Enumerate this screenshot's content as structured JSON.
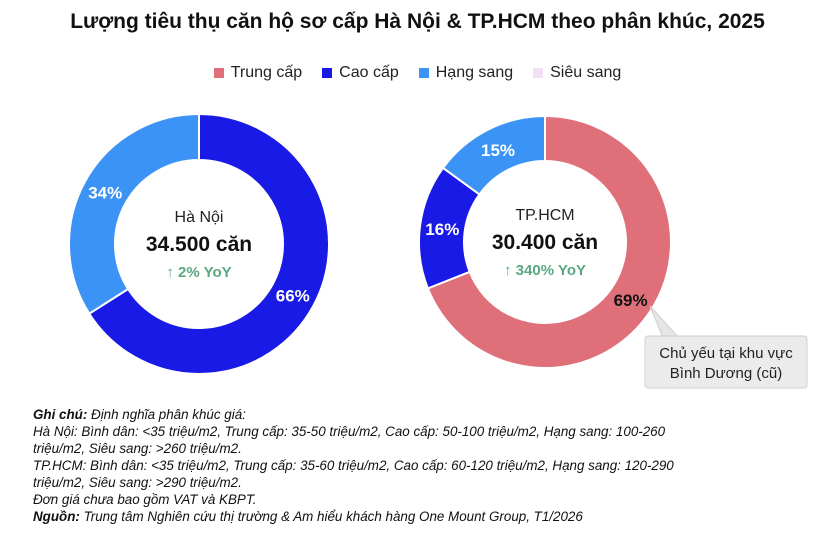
{
  "title": "Lượng tiêu thụ căn hộ sơ cấp Hà Nội & TP.HCM theo phân khúc, 2025",
  "legend": [
    {
      "label": "Trung cấp",
      "color": "#df7079"
    },
    {
      "label": "Cao cấp",
      "color": "#1a1ae6"
    },
    {
      "label": "Hạng sang",
      "color": "#3b94f5"
    },
    {
      "label": "Siêu sang",
      "color": "#f2e0f7"
    }
  ],
  "chart_data": [
    {
      "type": "pie",
      "city": "Hà Nội",
      "total": "34.500 căn",
      "yoy": "↑ 2% YoY",
      "slices": [
        {
          "name": "Cao cấp",
          "value": 66,
          "label": "66%",
          "color": "#1a1ae6"
        },
        {
          "name": "Hạng sang",
          "value": 34,
          "label": "34%",
          "color": "#3b94f5"
        }
      ]
    },
    {
      "type": "pie",
      "city": "TP.HCM",
      "total": "30.400 căn",
      "yoy": "↑ 340% YoY",
      "slices": [
        {
          "name": "Trung cấp",
          "value": 69,
          "label": "69%",
          "color": "#df7079"
        },
        {
          "name": "Cao cấp",
          "value": 16,
          "label": "16%",
          "color": "#1a1ae6"
        },
        {
          "name": "Hạng sang",
          "value": 15,
          "label": "15%",
          "color": "#3b94f5"
        }
      ],
      "annotation": [
        "Chủ yếu tại khu vực",
        "Bình Dương (cũ)"
      ]
    }
  ],
  "yoy_color": "#5aa882",
  "notes": {
    "heading": "Ghi chú:",
    "heading_rest": " Định nghĩa phân khúc giá:",
    "hn_line1": "Hà Nội: Bình dân: <35 triệu/m2, Trung cấp: 35-50 triệu/m2, Cao cấp: 50-100 triệu/m2, Hạng sang: 100-260",
    "hn_line2": "triệu/m2, Siêu sang: >260 triệu/m2.",
    "hcm_line1": "TP.HCM: Bình dân: <35 triệu/m2, Trung cấp: 35-60 triệu/m2, Cao cấp: 60-120 triệu/m2, Hạng sang: 120-290",
    "hcm_line2": "triệu/m2, Siêu sang: >290 triệu/m2.",
    "vat": "Đơn giá chưa bao gồm VAT và KBPT.",
    "source_label": "Nguồn:",
    "source_text": " Trung tâm Nghiên cứu thị trường & Am hiểu khách hàng One Mount Group, T1/2026"
  }
}
